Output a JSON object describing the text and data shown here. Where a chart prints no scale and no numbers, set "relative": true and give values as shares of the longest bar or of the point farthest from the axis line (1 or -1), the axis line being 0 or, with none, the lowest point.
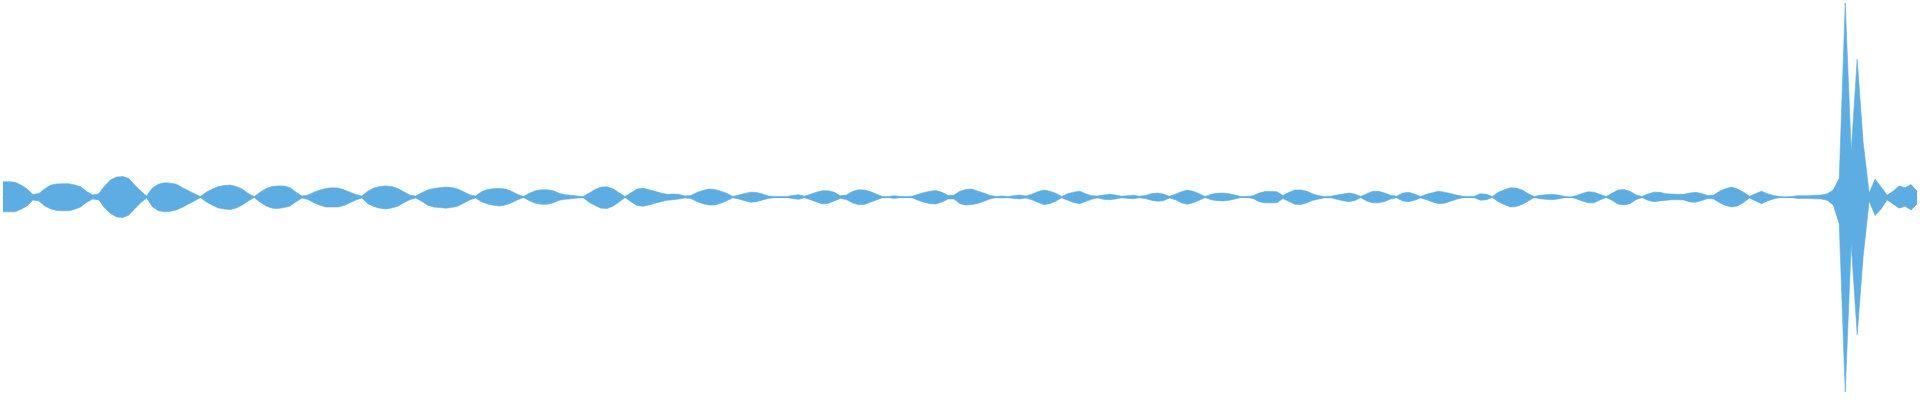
{
  "chart_data": {
    "type": "area",
    "relative": true,
    "categories": [
      null,
      null,
      null,
      null,
      null,
      null,
      null,
      null,
      null,
      null,
      null,
      null,
      null,
      null,
      null,
      null,
      null,
      null,
      null,
      null,
      null,
      null,
      null,
      null,
      null,
      null,
      null,
      null,
      null,
      null,
      null,
      null,
      null,
      null,
      null,
      null,
      null,
      null,
      null,
      null,
      null,
      null,
      null,
      null,
      null,
      null,
      null,
      null,
      null,
      null,
      null,
      null,
      null,
      null,
      null,
      null,
      null,
      null,
      null,
      null,
      null,
      null,
      null,
      null,
      null,
      null,
      null,
      null,
      null,
      null,
      null,
      null,
      null,
      null,
      null,
      null,
      null,
      null,
      null,
      null,
      null,
      null,
      null,
      null,
      null,
      null,
      null,
      null,
      null,
      null,
      null,
      null,
      null,
      null,
      null,
      null,
      null,
      null,
      null,
      null,
      null,
      null,
      null,
      null,
      null,
      null,
      null,
      null,
      null,
      null,
      null,
      null,
      null,
      null,
      null,
      null,
      null,
      null,
      null,
      null,
      null,
      null,
      null,
      null,
      null,
      null,
      null,
      null,
      null,
      null,
      null,
      null,
      null,
      null,
      null,
      null,
      null,
      null,
      null,
      null,
      null,
      null,
      null,
      null,
      null,
      null,
      null,
      null,
      null,
      null,
      null,
      null,
      null,
      null,
      null,
      null,
      null,
      null,
      null,
      null,
      null,
      null,
      null,
      null,
      null,
      null,
      null,
      null,
      null,
      null,
      null,
      null,
      null,
      null,
      null,
      null,
      null,
      null,
      null,
      null,
      null,
      null,
      null,
      null,
      null,
      null,
      null,
      null,
      null,
      null,
      null,
      null,
      null,
      null,
      null,
      null,
      null,
      null,
      null,
      null,
      null,
      null,
      null,
      null,
      null,
      null,
      null,
      null,
      null,
      null,
      null,
      null,
      null,
      null,
      null,
      null,
      null,
      null,
      null,
      null,
      null,
      null,
      null,
      null,
      null,
      null,
      null,
      null,
      null,
      null,
      null,
      null,
      null,
      null,
      null,
      null,
      null,
      null,
      null,
      null,
      null,
      null,
      null,
      null,
      null,
      null,
      null,
      null,
      null,
      null,
      null,
      null,
      null,
      null,
      null,
      null,
      null,
      null,
      null,
      null,
      null,
      null,
      null,
      null,
      null,
      null,
      null,
      null,
      null,
      null,
      null,
      null,
      null,
      null,
      null,
      null,
      null,
      null,
      null,
      null,
      null,
      null,
      null,
      null,
      null,
      null,
      null,
      null,
      null,
      null,
      null,
      null,
      null,
      null,
      null,
      null,
      null,
      null,
      null,
      null,
      null,
      null,
      null,
      null,
      null,
      null,
      null,
      null,
      null,
      null,
      null,
      null,
      null,
      null,
      null,
      null,
      null,
      null,
      null,
      null,
      null
    ],
    "series": [
      {
        "color": "#5dade2",
        "values": [
          0.078,
          0.078,
          0.076,
          0.062,
          0.042,
          0.013,
          0.018,
          0.043,
          0.061,
          0.067,
          0.068,
          0.068,
          0.062,
          0.052,
          0.028,
          0.01,
          0.017,
          0.057,
          0.088,
          0.102,
          0.105,
          0.096,
          0.062,
          0.032,
          0.005,
          0.047,
          0.066,
          0.073,
          0.071,
          0.066,
          0.048,
          0.032,
          0.017,
          0.003,
          0.025,
          0.041,
          0.054,
          0.059,
          0.061,
          0.054,
          0.041,
          0.018,
          0.003,
          0.025,
          0.043,
          0.054,
          0.057,
          0.056,
          0.048,
          0.025,
          0.005,
          0.01,
          0.025,
          0.036,
          0.044,
          0.047,
          0.046,
          0.037,
          0.025,
          0.013,
          0.005,
          0.03,
          0.046,
          0.054,
          0.057,
          0.054,
          0.044,
          0.027,
          0.01,
          0.005,
          0.022,
          0.036,
          0.044,
          0.047,
          0.051,
          0.049,
          0.041,
          0.027,
          0.012,
          0.005,
          0.027,
          0.039,
          0.043,
          0.044,
          0.041,
          0.03,
          0.014,
          0.002,
          0.019,
          0.032,
          0.037,
          0.037,
          0.032,
          0.019,
          0.012,
          0.009,
          0.005,
          0.003,
          0.02,
          0.039,
          0.051,
          0.052,
          0.042,
          0.022,
          0.003,
          0.022,
          0.041,
          0.046,
          0.037,
          0.029,
          0.02,
          0.014,
          0.015,
          0.014,
          0.005,
          0.008,
          0.023,
          0.034,
          0.041,
          0.039,
          0.03,
          0.019,
          0.003,
          0.01,
          0.018,
          0.025,
          0.023,
          0.015,
          0.005,
          0.003,
          0.003,
          0.003,
          0.008,
          0.012,
          0.004,
          0.014,
          0.025,
          0.032,
          0.032,
          0.024,
          0.007,
          0.01,
          0.028,
          0.037,
          0.036,
          0.028,
          0.015,
          0.003,
          0.003,
          0.007,
          0.003,
          0.003,
          0.004,
          0.014,
          0.023,
          0.03,
          0.033,
          0.024,
          0.008,
          0.01,
          0.03,
          0.039,
          0.041,
          0.03,
          0.02,
          0.009,
          0.003,
          0.005,
          0.003,
          0.007,
          0.01,
          0.005,
          0.014,
          0.027,
          0.036,
          0.03,
          0.019,
          0.003,
          0.017,
          0.025,
          0.03,
          0.017,
          0.007,
          0.005,
          0.01,
          0.014,
          0.01,
          0.004,
          0.007,
          0.009,
          0.004,
          0.008,
          0.017,
          0.02,
          0.015,
          0.004,
          0.014,
          0.027,
          0.036,
          0.029,
          0.017,
          0.003,
          0.014,
          0.019,
          0.02,
          0.017,
          0.01,
          0.002,
          0.003,
          0.007,
          0.02,
          0.028,
          0.028,
          0.027,
          0.008,
          0.024,
          0.036,
          0.036,
          0.029,
          0.015,
          0.007,
          0.003,
          0.004,
          0.01,
          0.015,
          0.02,
          0.015,
          0.003,
          0.017,
          0.029,
          0.029,
          0.02,
          0.009,
          0.004,
          0.02,
          0.024,
          0.015,
          0.003,
          0.014,
          0.022,
          0.03,
          0.025,
          0.018,
          0.01,
          0.004,
          0.003,
          0.004,
          0.017,
          0.014,
          0.003,
          0.024,
          0.037,
          0.047,
          0.046,
          0.036,
          0.017,
          0.003,
          0.009,
          0.012,
          0.014,
          0.01,
          0.004,
          0,
          0.007,
          0.018,
          0.027,
          0.025,
          0.014,
          0.002,
          0.019,
          0.036,
          0.039,
          0.029,
          0.012,
          0.003,
          0.015,
          0.025,
          0.024,
          0.017,
          0.015,
          0.014,
          0.014,
          0.02,
          0.024,
          0.018,
          0.008,
          0.01,
          0.03,
          0.043,
          0.051,
          0.041,
          0.025,
          0.004,
          0.017,
          0.03,
          0.017,
          0.008,
          0.002,
          0,
          0.002,
          0.007,
          0.007,
          0.007,
          0.009,
          0.01,
          0.017,
          0.036,
          0.096,
          0.995,
          0.234,
          0.706,
          0.279,
          0.02,
          0.091,
          0.051,
          0.01,
          0.03,
          0.056,
          0.048,
          0.064,
          0.03
        ]
      },
      {
        "color": "#5eade2",
        "values": [
          -0.076,
          -0.076,
          -0.076,
          -0.063,
          -0.046,
          -0.015,
          -0.02,
          -0.046,
          -0.061,
          -0.069,
          -0.071,
          -0.071,
          -0.063,
          -0.051,
          -0.027,
          -0.01,
          -0.015,
          -0.056,
          -0.085,
          -0.102,
          -0.105,
          -0.093,
          -0.061,
          -0.03,
          -0.005,
          -0.051,
          -0.07,
          -0.076,
          -0.073,
          -0.066,
          -0.053,
          -0.036,
          -0.02,
          -0.003,
          -0.025,
          -0.042,
          -0.056,
          -0.062,
          -0.064,
          -0.056,
          -0.041,
          -0.02,
          -0.003,
          -0.027,
          -0.046,
          -0.057,
          -0.059,
          -0.054,
          -0.046,
          -0.024,
          -0.005,
          -0.013,
          -0.03,
          -0.042,
          -0.051,
          -0.051,
          -0.051,
          -0.044,
          -0.03,
          -0.015,
          -0.005,
          -0.034,
          -0.049,
          -0.057,
          -0.061,
          -0.056,
          -0.047,
          -0.03,
          -0.014,
          -0.005,
          -0.022,
          -0.042,
          -0.051,
          -0.054,
          -0.057,
          -0.054,
          -0.047,
          -0.032,
          -0.015,
          -0.005,
          -0.024,
          -0.036,
          -0.042,
          -0.046,
          -0.041,
          -0.03,
          -0.015,
          -0.002,
          -0.019,
          -0.032,
          -0.037,
          -0.037,
          -0.03,
          -0.017,
          -0.012,
          -0.009,
          -0.005,
          -0.004,
          -0.027,
          -0.044,
          -0.057,
          -0.059,
          -0.047,
          -0.025,
          -0.003,
          -0.024,
          -0.044,
          -0.047,
          -0.041,
          -0.032,
          -0.024,
          -0.017,
          -0.014,
          -0.01,
          -0.005,
          -0.008,
          -0.023,
          -0.034,
          -0.041,
          -0.041,
          -0.032,
          -0.019,
          -0.004,
          -0.01,
          -0.019,
          -0.027,
          -0.024,
          -0.015,
          -0.007,
          -0.003,
          -0.003,
          -0.003,
          -0.008,
          -0.012,
          -0.004,
          -0.014,
          -0.025,
          -0.036,
          -0.032,
          -0.02,
          -0.007,
          -0.013,
          -0.03,
          -0.039,
          -0.038,
          -0.027,
          -0.015,
          -0.004,
          -0.003,
          -0.007,
          -0.003,
          -0.003,
          -0.004,
          -0.017,
          -0.027,
          -0.034,
          -0.036,
          -0.025,
          -0.01,
          -0.01,
          -0.034,
          -0.041,
          -0.039,
          -0.033,
          -0.022,
          -0.01,
          -0.003,
          -0.005,
          -0.003,
          -0.007,
          -0.01,
          -0.005,
          -0.014,
          -0.027,
          -0.039,
          -0.034,
          -0.022,
          -0.004,
          -0.017,
          -0.028,
          -0.034,
          -0.023,
          -0.012,
          -0.005,
          -0.012,
          -0.014,
          -0.01,
          -0.004,
          -0.007,
          -0.009,
          -0.004,
          -0.008,
          -0.017,
          -0.022,
          -0.019,
          -0.005,
          -0.014,
          -0.03,
          -0.037,
          -0.029,
          -0.017,
          -0.003,
          -0.014,
          -0.019,
          -0.02,
          -0.017,
          -0.01,
          -0.002,
          -0.003,
          -0.007,
          -0.024,
          -0.03,
          -0.03,
          -0.029,
          -0.008,
          -0.023,
          -0.037,
          -0.039,
          -0.03,
          -0.017,
          -0.01,
          -0.004,
          -0.004,
          -0.012,
          -0.019,
          -0.024,
          -0.018,
          -0.003,
          -0.02,
          -0.03,
          -0.03,
          -0.023,
          -0.01,
          -0.004,
          -0.02,
          -0.024,
          -0.017,
          -0.005,
          -0.014,
          -0.025,
          -0.034,
          -0.032,
          -0.022,
          -0.012,
          -0.004,
          -0.003,
          -0.004,
          -0.017,
          -0.014,
          -0.003,
          -0.024,
          -0.039,
          -0.051,
          -0.049,
          -0.038,
          -0.02,
          -0.003,
          -0.009,
          -0.012,
          -0.014,
          -0.01,
          -0.004,
          0,
          -0.009,
          -0.02,
          -0.03,
          -0.03,
          -0.015,
          -0.002,
          -0.017,
          -0.036,
          -0.041,
          -0.034,
          -0.014,
          -0.003,
          -0.017,
          -0.024,
          -0.02,
          -0.017,
          -0.014,
          -0.014,
          -0.015,
          -0.025,
          -0.027,
          -0.018,
          -0.008,
          -0.01,
          -0.03,
          -0.043,
          -0.051,
          -0.046,
          -0.028,
          -0.005,
          -0.02,
          -0.034,
          -0.02,
          -0.01,
          -0.003,
          0,
          -0.002,
          -0.007,
          -0.007,
          -0.007,
          -0.009,
          -0.01,
          -0.017,
          -0.041,
          -0.137,
          -1,
          -0.239,
          -0.706,
          -0.305,
          -0.02,
          -0.095,
          -0.061,
          -0.015,
          -0.036,
          -0.057,
          -0.048,
          -0.066,
          -0.036
        ]
      }
    ],
    "ref_lines": [
      {
        "axis": "y",
        "value": 0,
        "color": "#5dade2"
      }
    ]
  }
}
